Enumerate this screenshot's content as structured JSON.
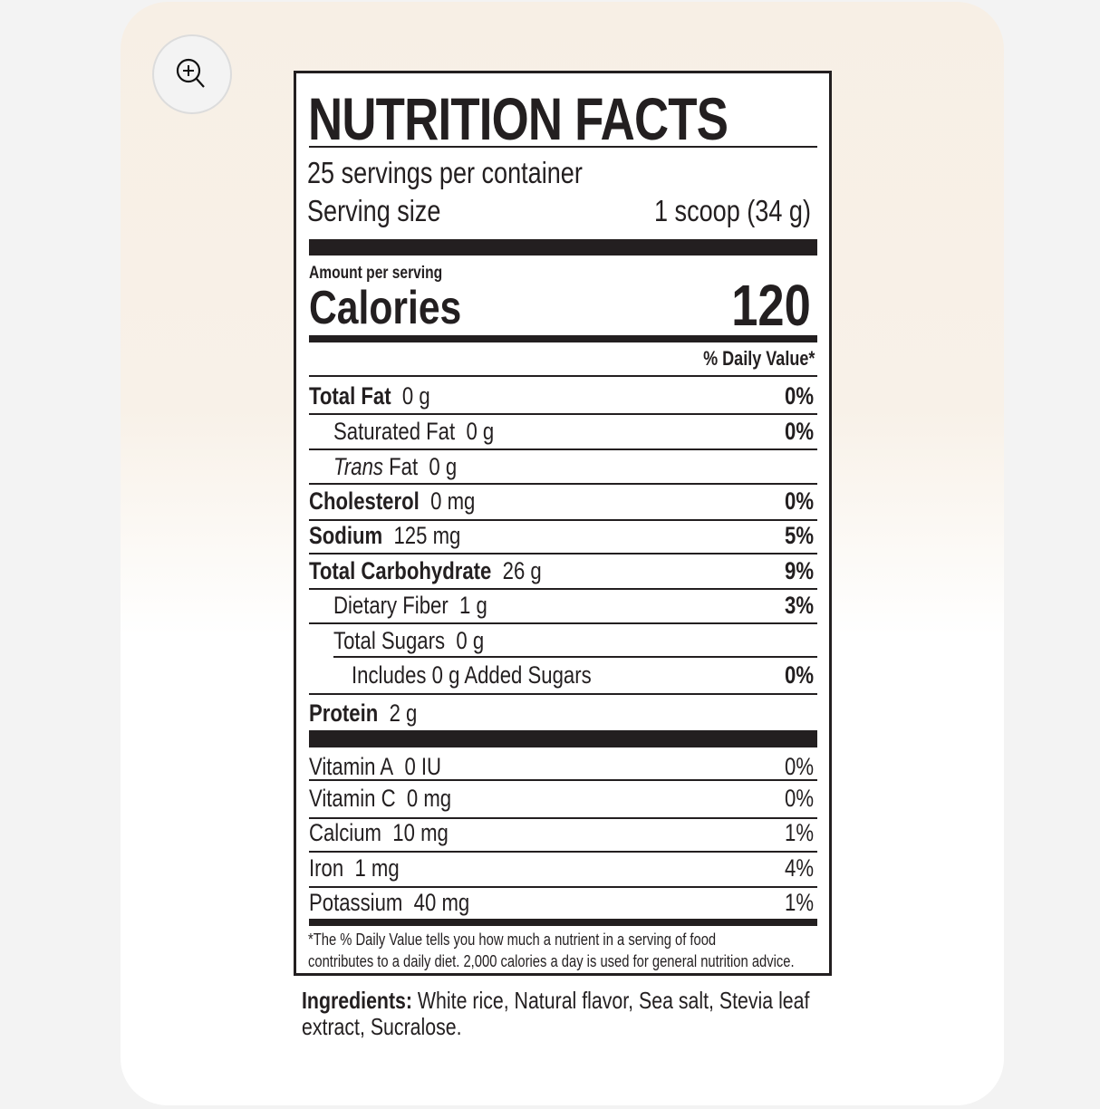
{
  "zoom_button": {
    "icon": "zoom-in-icon"
  },
  "label": {
    "title": "NUTRITION FACTS",
    "servings": "25 servings per container",
    "serving_size_label": "Serving size",
    "serving_size_value": "1 scoop (34 g)",
    "amount_per_serving": "Amount per serving",
    "calories_label": "Calories",
    "calories_value": "120",
    "daily_value_header": "% Daily Value*",
    "nutrients": [
      {
        "name": "Total Fat",
        "amount": "0 g",
        "dv": "0%",
        "bold": true,
        "indent": 0
      },
      {
        "name": "Saturated Fat",
        "amount": "0 g",
        "dv": "0%",
        "bold": false,
        "indent": 1
      },
      {
        "name_italic": "Trans",
        "name": "Fat",
        "amount": "0 g",
        "dv": "",
        "bold": false,
        "indent": 1
      },
      {
        "name": "Cholesterol",
        "amount": "0 mg",
        "dv": "0%",
        "bold": true,
        "indent": 0
      },
      {
        "name": "Sodium",
        "amount": "125 mg",
        "dv": "5%",
        "bold": true,
        "indent": 0
      },
      {
        "name": "Total Carbohydrate",
        "amount": "26 g",
        "dv": "9%",
        "bold": true,
        "indent": 0
      },
      {
        "name": "Dietary Fiber",
        "amount": "1 g",
        "dv": "3%",
        "bold": false,
        "indent": 1
      },
      {
        "name": "Total Sugars",
        "amount": "0 g",
        "dv": "",
        "bold": false,
        "indent": 1
      },
      {
        "name": "Includes 0 g Added Sugars",
        "amount": "",
        "dv": "0%",
        "bold": false,
        "indent": 2
      },
      {
        "name": "Protein",
        "amount": "2 g",
        "dv": "",
        "bold": true,
        "indent": 0
      }
    ],
    "vitamins": [
      {
        "name": "Vitamin A",
        "amount": "0 IU",
        "dv": "0%"
      },
      {
        "name": "Vitamin C",
        "amount": "0 mg",
        "dv": "0%"
      },
      {
        "name": "Calcium",
        "amount": "10 mg",
        "dv": "1%"
      },
      {
        "name": "Iron",
        "amount": "1 mg",
        "dv": "4%"
      },
      {
        "name": "Potassium",
        "amount": "40 mg",
        "dv": "1%"
      }
    ],
    "footnote_line1": "*The % Daily Value tells you how much a nutrient in a serving of food",
    "footnote_line2": "contributes to a daily diet. 2,000 calories a day is used for general nutrition advice."
  },
  "ingredients": {
    "label": "Ingredients:",
    "text": " White rice, Natural flavor, Sea salt, Stevia leaf",
    "text_line2": "extract, Sucralose."
  }
}
